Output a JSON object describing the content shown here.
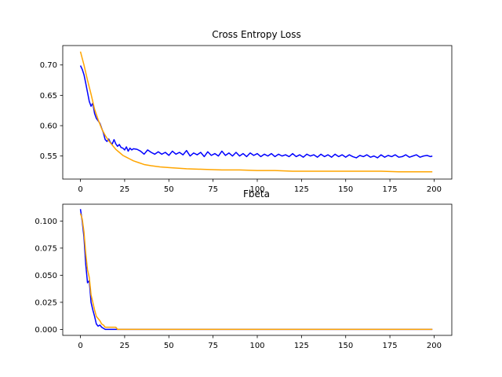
{
  "chart_data": [
    {
      "type": "line",
      "title": "Cross Entropy Loss",
      "xlabel": "",
      "ylabel": "",
      "xlim": [
        -10,
        210
      ],
      "ylim": [
        0.512,
        0.732
      ],
      "xticks": [
        0,
        25,
        50,
        75,
        100,
        125,
        150,
        175,
        200
      ],
      "yticks": [
        0.55,
        0.6,
        0.65,
        0.7
      ],
      "ytick_labels": [
        "0.55",
        "0.60",
        "0.65",
        "0.70"
      ],
      "grid": false,
      "series": [
        {
          "color": "#0000ff",
          "points": [
            [
              0,
              0.699
            ],
            [
              1,
              0.693
            ],
            [
              2,
              0.684
            ],
            [
              3,
              0.67
            ],
            [
              4,
              0.655
            ],
            [
              5,
              0.64
            ],
            [
              6,
              0.632
            ],
            [
              7,
              0.637
            ],
            [
              8,
              0.62
            ],
            [
              9,
              0.612
            ],
            [
              10,
              0.608
            ],
            [
              11,
              0.604
            ],
            [
              12,
              0.596
            ],
            [
              13,
              0.588
            ],
            [
              14,
              0.577
            ],
            [
              15,
              0.574
            ],
            [
              16,
              0.578
            ],
            [
              17,
              0.572
            ],
            [
              18,
              0.57
            ],
            [
              19,
              0.577
            ],
            [
              20,
              0.57
            ],
            [
              21,
              0.566
            ],
            [
              22,
              0.569
            ],
            [
              23,
              0.564
            ],
            [
              24,
              0.563
            ],
            [
              25,
              0.56
            ],
            [
              26,
              0.565
            ],
            [
              27,
              0.558
            ],
            [
              28,
              0.563
            ],
            [
              29,
              0.56
            ],
            [
              30,
              0.562
            ],
            [
              32,
              0.561
            ],
            [
              34,
              0.558
            ],
            [
              36,
              0.553
            ],
            [
              38,
              0.56
            ],
            [
              40,
              0.556
            ],
            [
              42,
              0.553
            ],
            [
              44,
              0.557
            ],
            [
              46,
              0.553
            ],
            [
              48,
              0.556
            ],
            [
              50,
              0.551
            ],
            [
              52,
              0.558
            ],
            [
              54,
              0.553
            ],
            [
              56,
              0.556
            ],
            [
              58,
              0.552
            ],
            [
              60,
              0.559
            ],
            [
              62,
              0.55
            ],
            [
              64,
              0.555
            ],
            [
              66,
              0.552
            ],
            [
              68,
              0.556
            ],
            [
              70,
              0.549
            ],
            [
              72,
              0.557
            ],
            [
              74,
              0.551
            ],
            [
              76,
              0.554
            ],
            [
              78,
              0.55
            ],
            [
              80,
              0.558
            ],
            [
              82,
              0.551
            ],
            [
              84,
              0.555
            ],
            [
              86,
              0.55
            ],
            [
              88,
              0.556
            ],
            [
              90,
              0.55
            ],
            [
              92,
              0.554
            ],
            [
              94,
              0.549
            ],
            [
              96,
              0.555
            ],
            [
              98,
              0.551
            ],
            [
              100,
              0.554
            ],
            [
              102,
              0.549
            ],
            [
              104,
              0.553
            ],
            [
              106,
              0.55
            ],
            [
              108,
              0.554
            ],
            [
              110,
              0.549
            ],
            [
              112,
              0.553
            ],
            [
              114,
              0.55
            ],
            [
              116,
              0.552
            ],
            [
              118,
              0.549
            ],
            [
              120,
              0.554
            ],
            [
              122,
              0.549
            ],
            [
              124,
              0.552
            ],
            [
              126,
              0.548
            ],
            [
              128,
              0.553
            ],
            [
              130,
              0.55
            ],
            [
              132,
              0.552
            ],
            [
              134,
              0.548
            ],
            [
              136,
              0.553
            ],
            [
              138,
              0.549
            ],
            [
              140,
              0.552
            ],
            [
              142,
              0.548
            ],
            [
              144,
              0.553
            ],
            [
              146,
              0.549
            ],
            [
              148,
              0.552
            ],
            [
              150,
              0.548
            ],
            [
              152,
              0.552
            ],
            [
              154,
              0.549
            ],
            [
              156,
              0.547
            ],
            [
              158,
              0.551
            ],
            [
              160,
              0.549
            ],
            [
              162,
              0.552
            ],
            [
              164,
              0.548
            ],
            [
              166,
              0.55
            ],
            [
              168,
              0.547
            ],
            [
              170,
              0.552
            ],
            [
              172,
              0.548
            ],
            [
              174,
              0.551
            ],
            [
              176,
              0.549
            ],
            [
              178,
              0.552
            ],
            [
              180,
              0.548
            ],
            [
              182,
              0.549
            ],
            [
              184,
              0.552
            ],
            [
              186,
              0.548
            ],
            [
              188,
              0.55
            ],
            [
              190,
              0.552
            ],
            [
              192,
              0.548
            ],
            [
              194,
              0.55
            ],
            [
              196,
              0.551
            ],
            [
              198,
              0.549
            ],
            [
              199,
              0.55
            ]
          ]
        },
        {
          "color": "#ffa500",
          "points": [
            [
              0,
              0.722
            ],
            [
              2,
              0.7
            ],
            [
              4,
              0.675
            ],
            [
              6,
              0.652
            ],
            [
              8,
              0.627
            ],
            [
              10,
              0.61
            ],
            [
              12,
              0.595
            ],
            [
              14,
              0.584
            ],
            [
              16,
              0.575
            ],
            [
              18,
              0.568
            ],
            [
              20,
              0.561
            ],
            [
              22,
              0.556
            ],
            [
              24,
              0.551
            ],
            [
              26,
              0.548
            ],
            [
              28,
              0.545
            ],
            [
              30,
              0.542
            ],
            [
              33,
              0.539
            ],
            [
              36,
              0.536
            ],
            [
              40,
              0.534
            ],
            [
              45,
              0.532
            ],
            [
              50,
              0.531
            ],
            [
              55,
              0.53
            ],
            [
              60,
              0.529
            ],
            [
              70,
              0.528
            ],
            [
              80,
              0.527
            ],
            [
              90,
              0.527
            ],
            [
              100,
              0.526
            ],
            [
              110,
              0.526
            ],
            [
              120,
              0.525
            ],
            [
              130,
              0.525
            ],
            [
              140,
              0.525
            ],
            [
              150,
              0.525
            ],
            [
              160,
              0.525
            ],
            [
              170,
              0.525
            ],
            [
              180,
              0.524
            ],
            [
              190,
              0.524
            ],
            [
              199,
              0.524
            ]
          ]
        }
      ]
    },
    {
      "type": "line",
      "title": "Fbeta",
      "xlabel": "",
      "ylabel": "",
      "xlim": [
        -10,
        210
      ],
      "ylim": [
        -0.0055,
        0.1155
      ],
      "xticks": [
        0,
        25,
        50,
        75,
        100,
        125,
        150,
        175,
        200
      ],
      "yticks": [
        0.0,
        0.025,
        0.05,
        0.075,
        0.1
      ],
      "ytick_labels": [
        "0.000",
        "0.025",
        "0.050",
        "0.075",
        "0.100"
      ],
      "grid": false,
      "series": [
        {
          "color": "#0000ff",
          "points": [
            [
              0,
              0.111
            ],
            [
              1,
              0.1
            ],
            [
              2,
              0.085
            ],
            [
              3,
              0.06
            ],
            [
              4,
              0.043
            ],
            [
              5,
              0.045
            ],
            [
              6,
              0.025
            ],
            [
              7,
              0.018
            ],
            [
              8,
              0.012
            ],
            [
              9,
              0.005
            ],
            [
              10,
              0.003
            ],
            [
              11,
              0.004
            ],
            [
              12,
              0.002
            ],
            [
              13,
              0.001
            ],
            [
              14,
              0.0
            ],
            [
              20,
              0.0
            ],
            [
              30,
              0.0
            ],
            [
              60,
              0.0
            ],
            [
              100,
              0.0
            ],
            [
              150,
              0.0
            ],
            [
              199,
              0.0
            ]
          ]
        },
        {
          "color": "#ffa500",
          "points": [
            [
              0,
              0.107
            ],
            [
              1,
              0.102
            ],
            [
              2,
              0.09
            ],
            [
              3,
              0.07
            ],
            [
              4,
              0.055
            ],
            [
              5,
              0.048
            ],
            [
              6,
              0.032
            ],
            [
              7,
              0.025
            ],
            [
              8,
              0.018
            ],
            [
              9,
              0.012
            ],
            [
              10,
              0.01
            ],
            [
              11,
              0.008
            ],
            [
              12,
              0.005
            ],
            [
              13,
              0.004
            ],
            [
              14,
              0.002
            ],
            [
              16,
              0.002
            ],
            [
              18,
              0.002
            ],
            [
              20,
              0.002
            ],
            [
              21,
              0.0
            ],
            [
              30,
              0.0
            ],
            [
              60,
              0.0
            ],
            [
              100,
              0.0
            ],
            [
              150,
              0.0
            ],
            [
              199,
              0.0
            ]
          ]
        }
      ]
    }
  ]
}
